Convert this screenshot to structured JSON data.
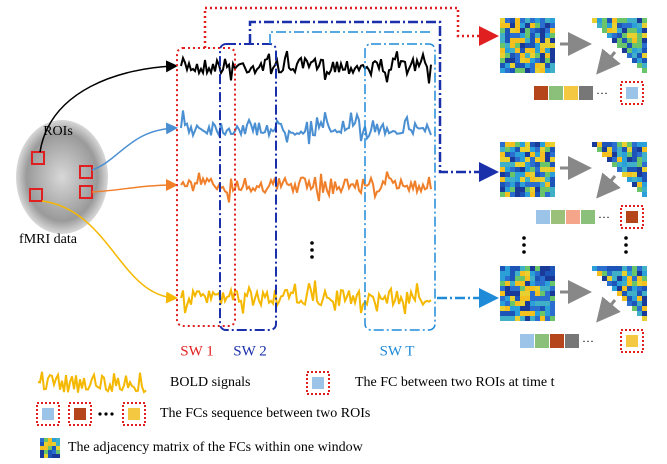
{
  "labels": {
    "rois": "ROIs",
    "fmri": "fMRI data",
    "sw1": "SW 1",
    "sw2": "SW 2",
    "swt": "SW T"
  },
  "legend": {
    "bold": "BOLD signals",
    "fc": "The FC between two ROIs at time t",
    "sequence": "The FCs sequence between two ROIs",
    "matrix": "The adjacency matrix of the FCs within one window"
  }
}
